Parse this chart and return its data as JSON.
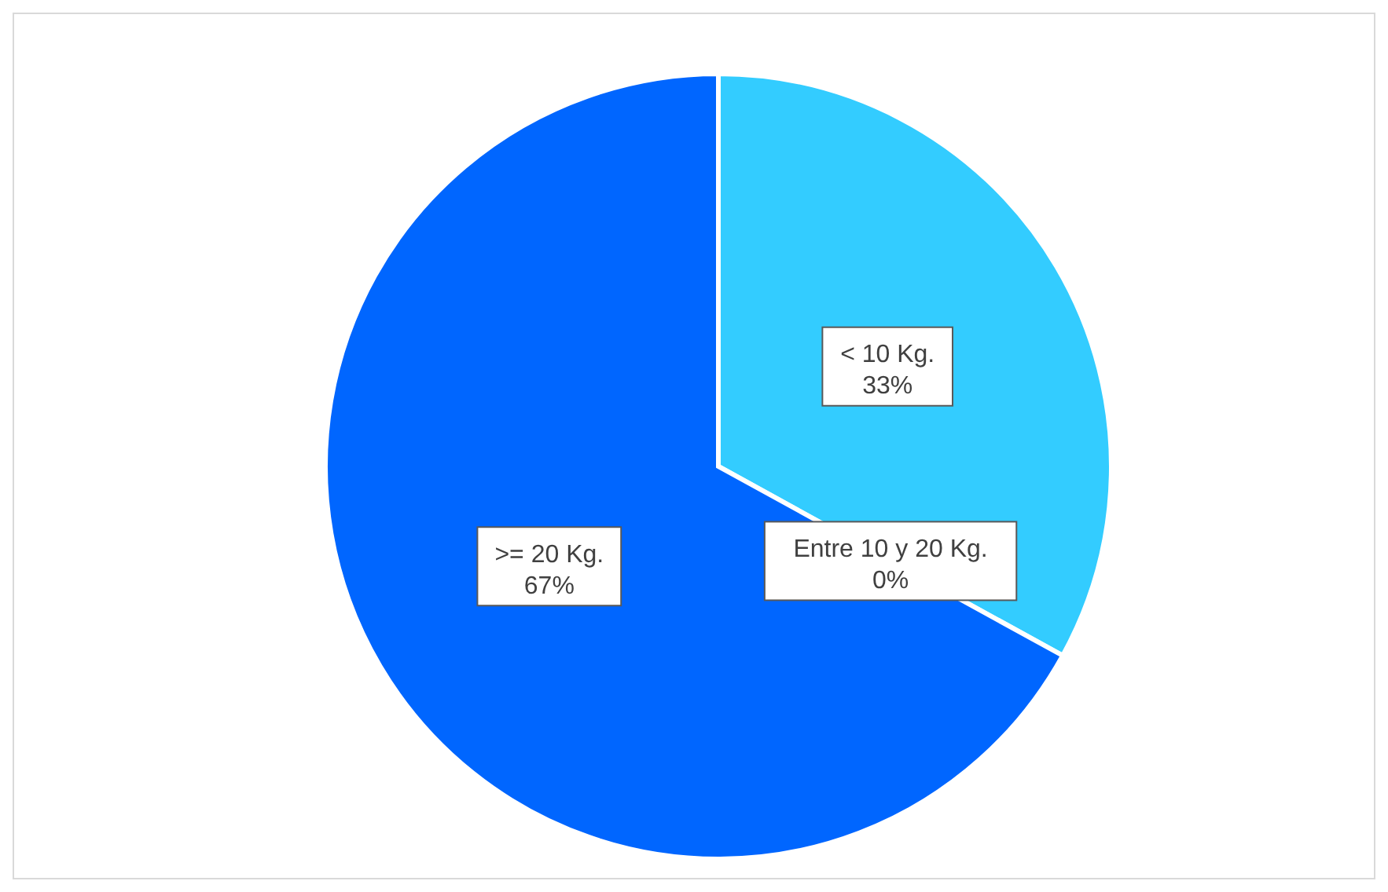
{
  "chart_data": {
    "type": "pie",
    "categories": [
      "< 10 Kg.",
      "Entre 10 y 20 Kg.",
      ">= 20 Kg."
    ],
    "values": [
      33,
      0,
      67
    ],
    "colors": [
      "#33ccff",
      "#1a99ff",
      "#0066ff"
    ],
    "value_labels": [
      "33%",
      "0%",
      "67%"
    ],
    "legend": false
  }
}
